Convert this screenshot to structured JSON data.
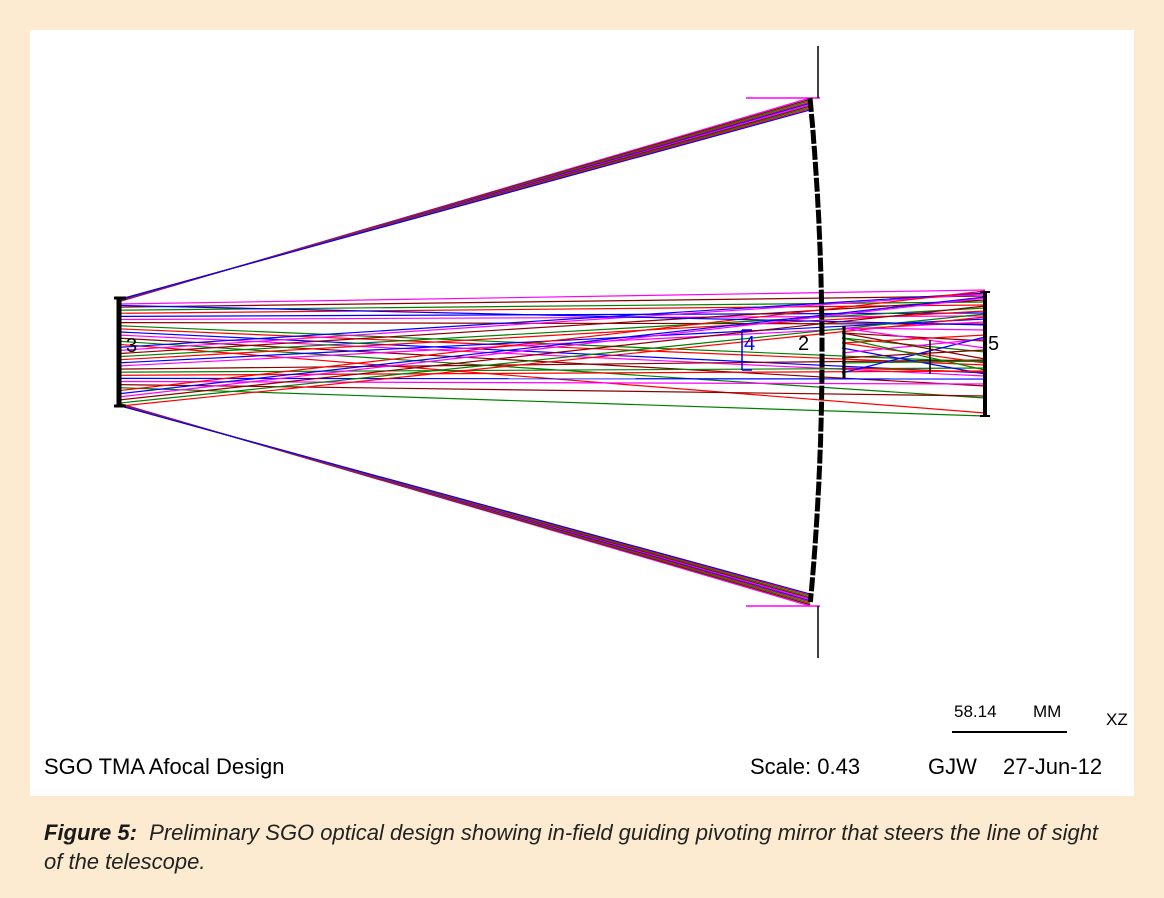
{
  "diagram": {
    "title": "SGO TMA Afocal Design",
    "scale_text": "Scale:  0.43",
    "author": "GJW",
    "date": "27-Jun-12",
    "scale_bar": {
      "value": "58.14",
      "unit": "MM"
    },
    "plane": "XZ",
    "surface_labels": [
      "2",
      "3",
      "4",
      "5"
    ]
  },
  "caption": {
    "label": "Figure 5:",
    "text": "Preliminary SGO optical design showing in-field guiding pivoting mirror that steers the line of sight of the telescope."
  },
  "colors": {
    "page_background": "#fcebd0",
    "panel_background": "#ffffff",
    "ray_magenta": "#ff00ff",
    "ray_red": "#ff0000",
    "ray_darkred": "#8b0000",
    "ray_green": "#008000",
    "ray_blue": "#0000ff",
    "optics": "#000000"
  }
}
